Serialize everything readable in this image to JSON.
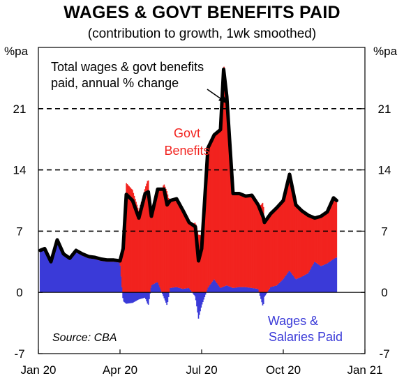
{
  "chart_data": {
    "type": "area",
    "title": "WAGES & GOVT BENEFITS PAID",
    "subtitle": "(contribution to growth, 1wk smoothed)",
    "left_unit": "%pa",
    "right_unit": "%pa",
    "ylim": [
      -7,
      28
    ],
    "yticks": [
      -7,
      0,
      7,
      14,
      21
    ],
    "ytick_labels": [
      "-7",
      "0",
      "7",
      "14",
      "21"
    ],
    "dashed_gridlines": [
      7,
      14,
      21
    ],
    "x_tick_labels": [
      "Jan 20",
      "Apr 20",
      "Jul 20",
      "Oct 20",
      "Jan 21"
    ],
    "x_range_weeks": [
      0,
      52
    ],
    "x_tick_weeks": [
      0,
      13,
      26,
      39,
      52
    ],
    "annotation": "Total wages & govt benefits paid, annual % change",
    "annotation_lines": [
      "Total wages & govt benefits",
      "paid, annual % change"
    ],
    "source": "Source: CBA",
    "colors": {
      "wages": "#3a3ad8",
      "benefits": "#f2231f",
      "total": "#000000"
    },
    "series": [
      {
        "name": "Wages & Salaries Paid",
        "label_lines": [
          "Wages &",
          "Salaries Paid"
        ],
        "points": [
          [
            0.3,
            4.6
          ],
          [
            1,
            4.8
          ],
          [
            2,
            3.3
          ],
          [
            3,
            5.8
          ],
          [
            4,
            4.2
          ],
          [
            5,
            3.7
          ],
          [
            6,
            4.6
          ],
          [
            7,
            4.2
          ],
          [
            8,
            3.9
          ],
          [
            9,
            3.8
          ],
          [
            10,
            3.6
          ],
          [
            11,
            3.5
          ],
          [
            12,
            3.5
          ],
          [
            13,
            3.4
          ],
          [
            13.5,
            -1.0
          ],
          [
            14,
            -1.3
          ],
          [
            15,
            -1.2
          ],
          [
            16,
            -0.8
          ],
          [
            17,
            -0.6
          ],
          [
            17.5,
            -1.5
          ],
          [
            18,
            0.8
          ],
          [
            19,
            1.2
          ],
          [
            20,
            -0.6
          ],
          [
            20.5,
            -1.5
          ],
          [
            21,
            0.5
          ],
          [
            22,
            0.6
          ],
          [
            23,
            0.4
          ],
          [
            24,
            0.5
          ],
          [
            25,
            -0.5
          ],
          [
            25.5,
            -3.0
          ],
          [
            26,
            -1.5
          ],
          [
            27,
            0.5
          ],
          [
            28,
            1.5
          ],
          [
            29,
            0.5
          ],
          [
            30,
            0.8
          ],
          [
            31,
            0.5
          ],
          [
            32,
            0.6
          ],
          [
            33,
            0.6
          ],
          [
            34,
            0.5
          ],
          [
            35,
            0.4
          ],
          [
            35.8,
            -1.7
          ],
          [
            36,
            -0.5
          ],
          [
            37,
            0.6
          ],
          [
            38,
            0.8
          ],
          [
            39,
            1.5
          ],
          [
            40,
            2.5
          ],
          [
            41,
            1.5
          ],
          [
            42,
            1.8
          ],
          [
            43,
            2.2
          ],
          [
            44,
            3.5
          ],
          [
            45,
            3.0
          ],
          [
            46,
            3.3
          ],
          [
            47,
            3.8
          ],
          [
            47.5,
            4.0
          ]
        ]
      },
      {
        "name": "Govt Benefits",
        "label_lines": [
          "Govt",
          "Benefits"
        ],
        "points": [
          [
            0.3,
            0.2
          ],
          [
            1,
            0.2
          ],
          [
            2,
            0.2
          ],
          [
            3,
            0.2
          ],
          [
            4,
            0.2
          ],
          [
            5,
            0.2
          ],
          [
            6,
            0.2
          ],
          [
            7,
            0.2
          ],
          [
            8,
            0.2
          ],
          [
            9,
            0.2
          ],
          [
            10,
            0.2
          ],
          [
            11,
            0.2
          ],
          [
            12,
            0.2
          ],
          [
            13,
            0.2
          ],
          [
            13.5,
            6.0
          ],
          [
            14,
            12.5
          ],
          [
            15,
            11.7
          ],
          [
            16,
            9.3
          ],
          [
            17,
            11.9
          ],
          [
            17.5,
            13.0
          ],
          [
            18,
            7.9
          ],
          [
            19,
            10.6
          ],
          [
            20,
            12.4
          ],
          [
            20.5,
            11.5
          ],
          [
            21,
            10.0
          ],
          [
            22,
            10.1
          ],
          [
            23,
            9.0
          ],
          [
            24,
            7.5
          ],
          [
            25,
            8.0
          ],
          [
            25.5,
            6.6
          ],
          [
            26,
            6.5
          ],
          [
            27,
            16.0
          ],
          [
            28,
            16.5
          ],
          [
            29,
            18.1
          ],
          [
            29.5,
            25.5
          ],
          [
            30,
            22.4
          ],
          [
            31,
            10.8
          ],
          [
            32,
            10.7
          ],
          [
            33,
            10.4
          ],
          [
            34,
            10.6
          ],
          [
            35,
            9.6
          ],
          [
            35.8,
            10.3
          ],
          [
            36,
            8.5
          ],
          [
            37,
            8.4
          ],
          [
            38,
            8.9
          ],
          [
            39,
            9.0
          ],
          [
            40,
            10.5
          ],
          [
            41,
            8.5
          ],
          [
            42,
            7.5
          ],
          [
            43,
            6.6
          ],
          [
            44,
            5.0
          ],
          [
            45,
            5.7
          ],
          [
            46,
            5.9
          ],
          [
            47,
            7.0
          ],
          [
            47.5,
            6.5
          ]
        ]
      },
      {
        "name": "Total wages & govt benefits paid, annual % change",
        "points": [
          [
            0.3,
            4.8
          ],
          [
            1,
            5.0
          ],
          [
            2,
            3.5
          ],
          [
            3,
            6.0
          ],
          [
            4,
            4.4
          ],
          [
            5,
            3.9
          ],
          [
            6,
            4.8
          ],
          [
            7,
            4.4
          ],
          [
            8,
            4.1
          ],
          [
            9,
            4.0
          ],
          [
            10,
            3.8
          ],
          [
            11,
            3.7
          ],
          [
            12,
            3.7
          ],
          [
            13,
            3.6
          ],
          [
            13.5,
            5.0
          ],
          [
            14,
            11.2
          ],
          [
            15,
            10.5
          ],
          [
            16,
            8.5
          ],
          [
            17,
            11.3
          ],
          [
            17.5,
            11.5
          ],
          [
            18,
            8.7
          ],
          [
            19,
            11.8
          ],
          [
            20,
            11.8
          ],
          [
            20.5,
            10.0
          ],
          [
            21,
            10.5
          ],
          [
            22,
            10.7
          ],
          [
            23,
            9.4
          ],
          [
            24,
            8.0
          ],
          [
            25,
            7.5
          ],
          [
            25.5,
            3.6
          ],
          [
            26,
            5.0
          ],
          [
            27,
            16.5
          ],
          [
            28,
            18.0
          ],
          [
            29,
            18.6
          ],
          [
            29.5,
            25.5
          ],
          [
            30,
            22.4
          ],
          [
            31,
            11.3
          ],
          [
            32,
            11.3
          ],
          [
            33,
            11.0
          ],
          [
            34,
            11.1
          ],
          [
            35,
            10.0
          ],
          [
            35.8,
            8.6
          ],
          [
            36,
            8.0
          ],
          [
            37,
            9.0
          ],
          [
            38,
            9.7
          ],
          [
            39,
            10.5
          ],
          [
            40,
            13.5
          ],
          [
            41,
            10.0
          ],
          [
            42,
            9.3
          ],
          [
            43,
            8.8
          ],
          [
            44,
            8.5
          ],
          [
            45,
            8.7
          ],
          [
            46,
            9.2
          ],
          [
            47,
            10.8
          ],
          [
            47.5,
            10.5
          ]
        ]
      }
    ],
    "legend": "inline labels"
  }
}
